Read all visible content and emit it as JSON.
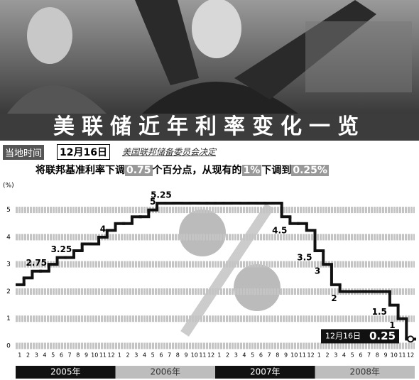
{
  "header": {
    "title": "美联储近年利率变化一览",
    "local_time": "当地时间",
    "date": "12月16日",
    "decision": "美国联邦储备委员会决定",
    "line_parts": [
      "将联邦基准利率下调",
      "0.75",
      "个百分点，从现有的",
      "1%",
      "下调到",
      "0.25%"
    ]
  },
  "chart_data": {
    "type": "step",
    "y_unit": "(%)",
    "color": "#111111",
    "categories": [
      "1",
      "2",
      "3",
      "4",
      "5",
      "6",
      "7",
      "8",
      "9",
      "10",
      "11",
      "12",
      "1",
      "2",
      "3",
      "4",
      "5",
      "6",
      "7",
      "8",
      "9",
      "10",
      "11",
      "12",
      "1",
      "2",
      "3",
      "4",
      "5",
      "6",
      "7",
      "8",
      "9",
      "10",
      "11",
      "12",
      "1",
      "2",
      "3",
      "4",
      "5",
      "6",
      "7",
      "8",
      "9",
      "10",
      "11",
      "12"
    ],
    "year_labels": [
      "2005年",
      "2006年",
      "2007年",
      "2008年"
    ],
    "values": [
      2.25,
      2.5,
      2.75,
      2.75,
      3,
      3.25,
      3.25,
      3.5,
      3.75,
      3.75,
      4,
      4.25,
      4.5,
      4.5,
      4.75,
      4.75,
      5,
      5.25,
      5.25,
      5.25,
      5.25,
      5.25,
      5.25,
      5.25,
      5.25,
      5.25,
      5.25,
      5.25,
      5.25,
      5.25,
      5.25,
      5.25,
      4.75,
      4.5,
      4.5,
      4.25,
      3.5,
      3,
      2.25,
      2,
      2,
      2,
      2,
      2,
      2,
      1.5,
      1,
      0.25
    ],
    "value_labels": [
      null,
      null,
      "2.75",
      null,
      null,
      "3.25",
      null,
      null,
      null,
      null,
      "4",
      null,
      null,
      null,
      null,
      null,
      "5",
      "5.25",
      null,
      null,
      null,
      null,
      null,
      null,
      null,
      null,
      null,
      null,
      null,
      null,
      null,
      null,
      null,
      "4.5",
      null,
      null,
      "3.5",
      "3",
      null,
      "2",
      null,
      null,
      null,
      null,
      null,
      "1.5",
      "1",
      "0.25"
    ],
    "callout_date": "12月16日",
    "ylim": [
      0,
      5.8
    ],
    "yticks": [
      0,
      1,
      2,
      3,
      4,
      5
    ],
    "grid": true
  }
}
